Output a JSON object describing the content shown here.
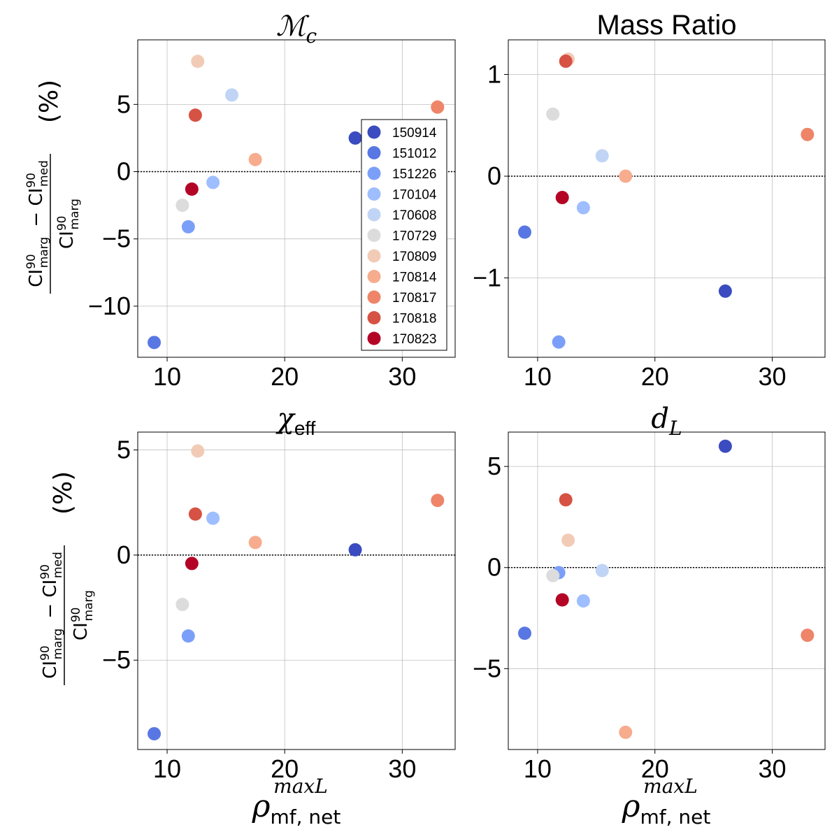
{
  "events": [
    "150914",
    "151012",
    "151226",
    "170104",
    "170608",
    "170729",
    "170809",
    "170814",
    "170817",
    "170818",
    "170823"
  ],
  "colors": {
    "150914": "#3b4cc0",
    "151012": "#5977e3",
    "151226": "#7b9ff9",
    "170104": "#9ebeff",
    "170608": "#c0d4f5",
    "170729": "#dddcdc",
    "170809": "#f2cbb7",
    "170814": "#f7ac8e",
    "170817": "#ee8468",
    "170818": "#d65244",
    "170823": "#b40426"
  },
  "x_axis": {
    "label_main": "ρ",
    "label_sup": "maxL",
    "label_sub": "mf, net"
  },
  "y_axis": {
    "num": "CI",
    "num_sup": "90",
    "num_sub_a": "marg",
    "num_sub_b": "med",
    "minus": "−",
    "den": "CI",
    "den_sup": "90",
    "den_sub": "marg",
    "unit": "(%)"
  },
  "chart_data": [
    {
      "type": "scatter",
      "title": "ℳ",
      "title_sub": "c",
      "xlim": [
        7.5,
        34.5
      ],
      "ylim": [
        -13.8,
        9.8
      ],
      "xticks": [
        10,
        20,
        30
      ],
      "yticks": [
        5,
        0,
        -5,
        -10
      ],
      "ytick_labels": [
        "5",
        "0",
        "−5",
        "−10"
      ],
      "legend": "upper right",
      "points": [
        {
          "event": "150914",
          "x": 26.0,
          "y": 2.5
        },
        {
          "event": "151012",
          "x": 8.9,
          "y": -12.7
        },
        {
          "event": "151226",
          "x": 11.8,
          "y": -4.1
        },
        {
          "event": "170104",
          "x": 13.9,
          "y": -0.8
        },
        {
          "event": "170608",
          "x": 15.5,
          "y": 5.7
        },
        {
          "event": "170729",
          "x": 11.3,
          "y": -2.5
        },
        {
          "event": "170809",
          "x": 12.6,
          "y": 8.2
        },
        {
          "event": "170814",
          "x": 17.5,
          "y": 0.9
        },
        {
          "event": "170817",
          "x": 33.0,
          "y": 4.8
        },
        {
          "event": "170818",
          "x": 12.4,
          "y": 4.2
        },
        {
          "event": "170823",
          "x": 12.1,
          "y": -1.3
        }
      ]
    },
    {
      "type": "scatter",
      "title": "Mass Ratio",
      "title_sub": "",
      "xlim": [
        7.5,
        34.5
      ],
      "ylim": [
        -1.78,
        1.34
      ],
      "xticks": [
        10,
        20,
        30
      ],
      "yticks": [
        1,
        0,
        -1
      ],
      "ytick_labels": [
        "1",
        "0",
        "−1"
      ],
      "points": [
        {
          "event": "150914",
          "x": 26.0,
          "y": -1.13
        },
        {
          "event": "151012",
          "x": 8.9,
          "y": -0.55
        },
        {
          "event": "151226",
          "x": 11.8,
          "y": -1.63
        },
        {
          "event": "170608",
          "x": 15.5,
          "y": 0.2
        },
        {
          "event": "170104",
          "x": 13.9,
          "y": -0.31
        },
        {
          "event": "170729",
          "x": 11.3,
          "y": 0.61
        },
        {
          "event": "170809",
          "x": 12.6,
          "y": 1.15
        },
        {
          "event": "170814",
          "x": 17.5,
          "y": 0.0
        },
        {
          "event": "170817",
          "x": 33.0,
          "y": 0.41
        },
        {
          "event": "170818",
          "x": 12.4,
          "y": 1.13
        },
        {
          "event": "170823",
          "x": 12.1,
          "y": -0.21
        }
      ]
    },
    {
      "type": "scatter",
      "title": "χ",
      "title_sub": "eff",
      "xlim": [
        7.5,
        34.5
      ],
      "ylim": [
        -9.25,
        5.85
      ],
      "xticks": [
        10,
        20,
        30
      ],
      "yticks": [
        5,
        0,
        -5
      ],
      "ytick_labels": [
        "5",
        "0",
        "−5"
      ],
      "points": [
        {
          "event": "150914",
          "x": 26.0,
          "y": 0.25
        },
        {
          "event": "151012",
          "x": 8.9,
          "y": -8.5
        },
        {
          "event": "151226",
          "x": 11.8,
          "y": -3.85
        },
        {
          "event": "170104",
          "x": 13.9,
          "y": 1.75
        },
        {
          "event": "170729",
          "x": 11.3,
          "y": -2.35
        },
        {
          "event": "170809",
          "x": 12.6,
          "y": 4.95
        },
        {
          "event": "170814",
          "x": 17.5,
          "y": 0.6
        },
        {
          "event": "170817",
          "x": 33.0,
          "y": 2.6
        },
        {
          "event": "170818",
          "x": 12.4,
          "y": 1.95
        },
        {
          "event": "170823",
          "x": 12.1,
          "y": -0.4
        }
      ]
    },
    {
      "type": "scatter",
      "title": "d",
      "title_sub": "L",
      "xlim": [
        7.5,
        34.5
      ],
      "ylim": [
        -9.0,
        6.7
      ],
      "xticks": [
        10,
        20,
        30
      ],
      "yticks": [
        5,
        0,
        -5
      ],
      "ytick_labels": [
        "5",
        "0",
        "−5"
      ],
      "points": [
        {
          "event": "150914",
          "x": 26.0,
          "y": 6.0
        },
        {
          "event": "151012",
          "x": 8.9,
          "y": -3.25
        },
        {
          "event": "151226",
          "x": 11.8,
          "y": -0.25
        },
        {
          "event": "170104",
          "x": 13.9,
          "y": -1.65
        },
        {
          "event": "170608",
          "x": 15.5,
          "y": -0.15
        },
        {
          "event": "170729",
          "x": 11.3,
          "y": -0.4
        },
        {
          "event": "170809",
          "x": 12.6,
          "y": 1.35
        },
        {
          "event": "170814",
          "x": 17.5,
          "y": -8.15
        },
        {
          "event": "170817",
          "x": 33.0,
          "y": -3.35
        },
        {
          "event": "170818",
          "x": 12.4,
          "y": 3.35
        },
        {
          "event": "170823",
          "x": 12.1,
          "y": -1.6
        }
      ]
    }
  ]
}
